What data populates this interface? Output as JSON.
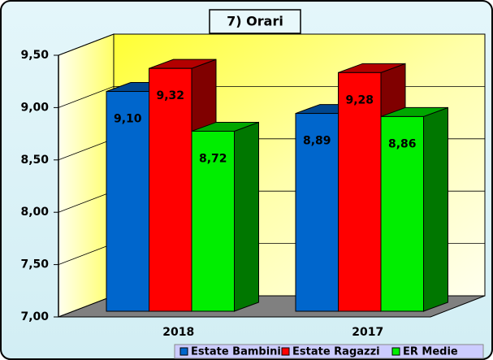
{
  "chart_data": {
    "type": "bar3d",
    "title": "7) Orari",
    "categories": [
      "2018",
      "2017"
    ],
    "series": [
      {
        "name": "Estate Bambini",
        "color": "#0066cc",
        "values": [
          9.1,
          8.89
        ],
        "value_labels": [
          "9,10",
          "8,89"
        ]
      },
      {
        "name": "Estate Ragazzi",
        "color": "#ff0000",
        "values": [
          9.32,
          9.28
        ],
        "value_labels": [
          "9,32",
          "9,28"
        ]
      },
      {
        "name": "ER Medie",
        "color": "#00ee00",
        "values": [
          8.72,
          8.86
        ],
        "value_labels": [
          "8,72",
          "8,86"
        ]
      }
    ],
    "ylim": [
      7,
      9.5
    ],
    "yticks": [
      {
        "value": 7,
        "label": "7,00"
      },
      {
        "value": 7.5,
        "label": "7,50"
      },
      {
        "value": 8,
        "label": "8,00"
      },
      {
        "value": 8.5,
        "label": "8,50"
      },
      {
        "value": 9,
        "label": "9,00"
      },
      {
        "value": 9.5,
        "label": "9,50"
      }
    ],
    "grid": true,
    "legend": "bottom"
  }
}
